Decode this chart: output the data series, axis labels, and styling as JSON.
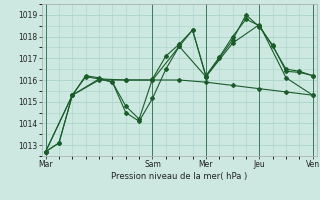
{
  "xlabel": "Pression niveau de la mer( hPa )",
  "background_color": "#cce8e0",
  "grid_color": "#aad4c8",
  "line_color": "#1a5c2a",
  "ylim": [
    1012.5,
    1019.5
  ],
  "yticks": [
    1013,
    1014,
    1015,
    1016,
    1017,
    1018,
    1019
  ],
  "xlim": [
    -0.3,
    20.3
  ],
  "day_positions": [
    0,
    8,
    12,
    16,
    20
  ],
  "day_labels": [
    "Mar",
    "Sam",
    "Mer",
    "Jeu",
    "Ven"
  ],
  "series": [
    {
      "x": [
        0,
        2,
        4,
        6,
        8,
        10,
        12,
        14,
        16,
        18,
        20
      ],
      "y": [
        1012.7,
        1015.3,
        1016.0,
        1016.0,
        1016.0,
        1016.0,
        1015.9,
        1015.75,
        1015.6,
        1015.45,
        1015.3
      ]
    },
    {
      "x": [
        0,
        1,
        2,
        3,
        4,
        5,
        6,
        7,
        8,
        9,
        10,
        11,
        12,
        13,
        14,
        15,
        16,
        17,
        18,
        19,
        20
      ],
      "y": [
        1012.7,
        1013.1,
        1015.3,
        1016.2,
        1016.1,
        1015.9,
        1014.5,
        1014.1,
        1015.15,
        1016.5,
        1017.55,
        1018.3,
        1016.2,
        1017.05,
        1018.0,
        1018.8,
        1018.5,
        1017.55,
        1016.5,
        1016.4,
        1016.2
      ]
    },
    {
      "x": [
        0,
        1,
        2,
        3,
        4,
        5,
        6,
        7,
        8,
        9,
        10,
        11,
        12,
        13,
        14,
        15,
        16,
        17,
        18,
        19,
        20
      ],
      "y": [
        1012.7,
        1013.1,
        1015.3,
        1016.15,
        1016.05,
        1015.9,
        1014.8,
        1014.2,
        1016.05,
        1017.1,
        1017.65,
        1018.3,
        1016.15,
        1017.0,
        1017.85,
        1019.0,
        1018.45,
        1017.6,
        1016.4,
        1016.35,
        1016.2
      ]
    },
    {
      "x": [
        0,
        2,
        4,
        6,
        8,
        10,
        12,
        14,
        16,
        18,
        20
      ],
      "y": [
        1012.7,
        1015.3,
        1016.05,
        1016.0,
        1016.0,
        1017.55,
        1016.15,
        1017.7,
        1018.55,
        1016.1,
        1015.3
      ]
    }
  ]
}
